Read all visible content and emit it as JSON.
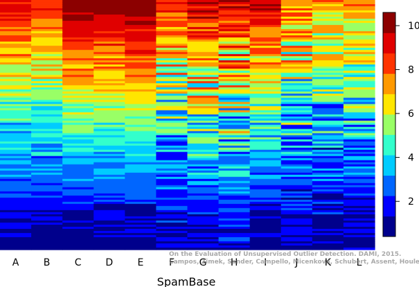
{
  "chart_data": {
    "type": "heatmap",
    "title": "",
    "xlabel": "SpamBase",
    "ylabel": "",
    "columns": [
      "A",
      "B",
      "C",
      "D",
      "E",
      "F",
      "G",
      "H",
      "I",
      "J",
      "K",
      "L"
    ],
    "rows": 120,
    "colorbar": {
      "min": 0.4,
      "max": 10.6,
      "ticks": [
        2,
        4,
        6,
        8,
        10
      ],
      "colors": [
        "#00008C",
        "#0000FF",
        "#0066FF",
        "#00CCFF",
        "#33FFCC",
        "#99FF66",
        "#FFE600",
        "#FF9900",
        "#FF3300",
        "#E00000",
        "#8C0000"
      ]
    },
    "column_profiles": [
      {
        "top": 9.0,
        "bottom": 1.0,
        "noise": 1.4
      },
      {
        "top": 8.5,
        "bottom": 1.0,
        "noise": 1.4
      },
      {
        "top": 10.3,
        "bottom": 1.0,
        "noise": 1.0
      },
      {
        "top": 10.2,
        "bottom": 1.0,
        "noise": 1.0
      },
      {
        "top": 10.6,
        "bottom": 1.0,
        "noise": 0.8
      },
      {
        "top": 8.8,
        "bottom": 1.2,
        "noise": 2.4
      },
      {
        "top": 9.5,
        "bottom": 1.2,
        "noise": 2.3
      },
      {
        "top": 9.2,
        "bottom": 1.5,
        "noise": 3.0
      },
      {
        "top": 9.6,
        "bottom": 1.0,
        "noise": 1.6
      },
      {
        "top": 7.5,
        "bottom": 1.1,
        "noise": 2.6
      },
      {
        "top": 7.2,
        "bottom": 1.0,
        "noise": 2.4
      },
      {
        "top": 7.4,
        "bottom": 1.1,
        "noise": 1.9
      }
    ]
  },
  "watermark": {
    "line1": "On the Evaluation of Unsupervised Outlier Detection. DAMI, 2015.",
    "line2": "Campos, Zimek, Sander, Campello, Micenková, Schubert, Assent, Houle"
  }
}
